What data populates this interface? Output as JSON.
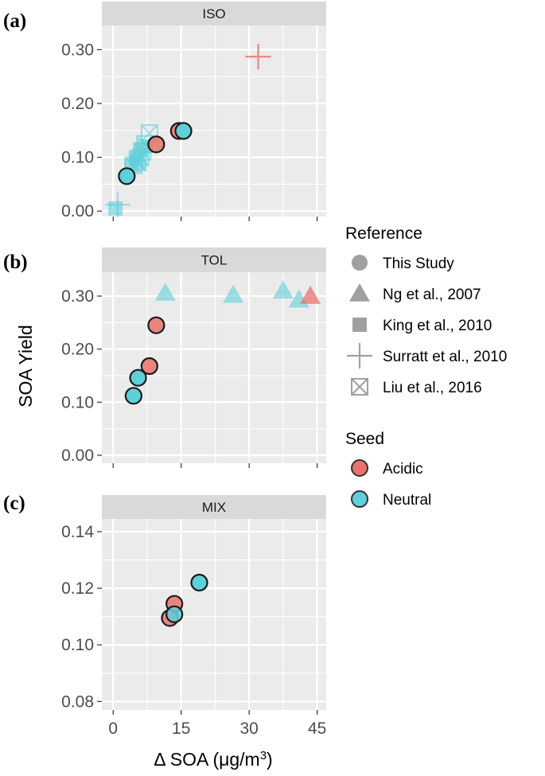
{
  "chart_data": [
    {
      "type": "scatter",
      "panel_label": "(a)",
      "strip": "ISO",
      "ylim": [
        -0.01,
        0.345
      ],
      "yticks": [
        0.0,
        0.1,
        0.2,
        0.3
      ],
      "ytick_labels": [
        "0.00",
        "0.10",
        "0.20",
        "0.30"
      ],
      "points": [
        {
          "ref": "Liu et al., 2016",
          "seed": "Neutral",
          "x": 8,
          "y": 0.145,
          "alpha": 0.6
        },
        {
          "ref": "Liu et al., 2016",
          "seed": "Neutral",
          "x": 7,
          "y": 0.125,
          "alpha": 0.6
        },
        {
          "ref": "Liu et al., 2016",
          "seed": "Neutral",
          "x": 6,
          "y": 0.1,
          "alpha": 0.6
        },
        {
          "ref": "Liu et al., 2016",
          "seed": "Neutral",
          "x": 5.5,
          "y": 0.09,
          "alpha": 0.6
        },
        {
          "ref": "Liu et al., 2016",
          "seed": "Neutral",
          "x": 4.5,
          "y": 0.085,
          "alpha": 0.6
        },
        {
          "ref": "Liu et al., 2016",
          "seed": "Neutral",
          "x": 6.5,
          "y": 0.11,
          "alpha": 0.6
        },
        {
          "ref": "King et al., 2010",
          "seed": "Neutral",
          "x": 5,
          "y": 0.1,
          "alpha": 0.6
        },
        {
          "ref": "King et al., 2010",
          "seed": "Neutral",
          "x": 6,
          "y": 0.115,
          "alpha": 0.6
        },
        {
          "ref": "King et al., 2010",
          "seed": "Neutral",
          "x": 4,
          "y": 0.085,
          "alpha": 0.6
        },
        {
          "ref": "King et al., 2010",
          "seed": "Neutral",
          "x": 5.5,
          "y": 0.09,
          "alpha": 0.6
        },
        {
          "ref": "King et al., 2010",
          "seed": "Neutral",
          "x": 7,
          "y": 0.12,
          "alpha": 0.6
        },
        {
          "ref": "King et al., 2010",
          "seed": "Neutral",
          "x": 0.5,
          "y": 0.005,
          "alpha": 0.6
        },
        {
          "ref": "Surratt et al., 2010",
          "seed": "Neutral",
          "x": 1,
          "y": 0.012,
          "alpha": 0.6
        },
        {
          "ref": "Surratt et al., 2010",
          "seed": "Acidic",
          "x": 32,
          "y": 0.287,
          "alpha": 0.85
        },
        {
          "ref": "This Study",
          "seed": "Neutral",
          "x": 3,
          "y": 0.065,
          "alpha": 1
        },
        {
          "ref": "This Study",
          "seed": "Acidic",
          "x": 9.5,
          "y": 0.124,
          "alpha": 0.85
        },
        {
          "ref": "This Study",
          "seed": "Acidic",
          "x": 14.5,
          "y": 0.149,
          "alpha": 0.85
        },
        {
          "ref": "This Study",
          "seed": "Neutral",
          "x": 15.5,
          "y": 0.149,
          "alpha": 1
        }
      ]
    },
    {
      "type": "scatter",
      "panel_label": "(b)",
      "strip": "TOL",
      "ylim": [
        -0.015,
        0.345
      ],
      "yticks": [
        0.0,
        0.1,
        0.2,
        0.3
      ],
      "ytick_labels": [
        "0.00",
        "0.10",
        "0.20",
        "0.30"
      ],
      "points": [
        {
          "ref": "Ng et al., 2007",
          "seed": "Neutral",
          "x": 11.5,
          "y": 0.306,
          "alpha": 0.6
        },
        {
          "ref": "Ng et al., 2007",
          "seed": "Neutral",
          "x": 26.5,
          "y": 0.302,
          "alpha": 0.6
        },
        {
          "ref": "Ng et al., 2007",
          "seed": "Neutral",
          "x": 37.5,
          "y": 0.31,
          "alpha": 0.6
        },
        {
          "ref": "Ng et al., 2007",
          "seed": "Neutral",
          "x": 41,
          "y": 0.293,
          "alpha": 0.6
        },
        {
          "ref": "Ng et al., 2007",
          "seed": "Acidic",
          "x": 43.5,
          "y": 0.3,
          "alpha": 0.75
        },
        {
          "ref": "This Study",
          "seed": "Acidic",
          "x": 9.5,
          "y": 0.245,
          "alpha": 0.85
        },
        {
          "ref": "This Study",
          "seed": "Acidic",
          "x": 8,
          "y": 0.168,
          "alpha": 0.85
        },
        {
          "ref": "This Study",
          "seed": "Neutral",
          "x": 5.5,
          "y": 0.146,
          "alpha": 1
        },
        {
          "ref": "This Study",
          "seed": "Neutral",
          "x": 4.5,
          "y": 0.112,
          "alpha": 1
        }
      ]
    },
    {
      "type": "scatter",
      "panel_label": "(c)",
      "strip": "MIX",
      "ylim": [
        0.077,
        0.1445
      ],
      "yticks": [
        0.08,
        0.1,
        0.12,
        0.14
      ],
      "ytick_labels": [
        "0.08",
        "0.10",
        "0.12",
        "0.14"
      ],
      "points": [
        {
          "ref": "This Study",
          "seed": "Acidic",
          "x": 13.5,
          "y": 0.1145,
          "alpha": 0.85
        },
        {
          "ref": "This Study",
          "seed": "Acidic",
          "x": 12.5,
          "y": 0.1095,
          "alpha": 0.85
        },
        {
          "ref": "This Study",
          "seed": "Neutral",
          "x": 13.5,
          "y": 0.1108,
          "alpha": 0.85
        },
        {
          "ref": "This Study",
          "seed": "Neutral",
          "x": 19,
          "y": 0.122,
          "alpha": 1
        }
      ]
    }
  ],
  "axes": {
    "xlim": [
      -2.5,
      47
    ],
    "xticks": [
      0,
      15,
      30,
      45
    ],
    "xtick_labels": [
      "0",
      "15",
      "30",
      "45"
    ],
    "xlabel": "Δ SOA (μg/m",
    "xlabel_sup": "3",
    "xlabel_close": ")",
    "ylabel": "SOA Yield"
  },
  "legend": {
    "reference_title": "Reference",
    "reference_items": [
      {
        "label": "This Study",
        "shape": "circle"
      },
      {
        "label": "Ng et al., 2007",
        "shape": "triangle"
      },
      {
        "label": "King et al., 2010",
        "shape": "square"
      },
      {
        "label": "Surratt et al., 2010",
        "shape": "plus"
      },
      {
        "label": "Liu et al., 2016",
        "shape": "boxx"
      }
    ],
    "seed_title": "Seed",
    "seed_items": [
      {
        "label": "Acidic",
        "color": "#e8736c"
      },
      {
        "label": "Neutral",
        "color": "#5fcfd8"
      }
    ]
  },
  "colors": {
    "Acidic": "#e8736c",
    "Neutral": "#5fcfd8",
    "panel_bg": "#ebebeb",
    "strip_bg": "#d9d9d9",
    "grid": "#ffffff",
    "legend_grey": "#a0a0a0"
  }
}
